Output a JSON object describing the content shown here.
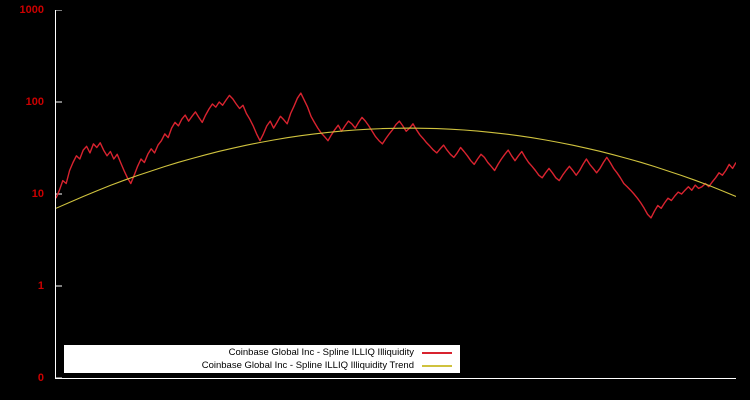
{
  "chart_data": {
    "type": "line",
    "title": "",
    "xlabel": "",
    "ylabel": "",
    "y_scale": "log",
    "log_top_decade": 3,
    "log_bottom_decade": -1,
    "ytick_labels": [
      "1000",
      "100",
      "10",
      "1",
      "0"
    ],
    "x_tick_labels": [],
    "grid": false,
    "background_color": "#000000",
    "axis_color": "#ffffff",
    "tick_label_color": "#cc0000",
    "legend_position": "bottom",
    "legend_background": "#ffffff",
    "series": [
      {
        "name": "Coinbase Global Inc - Spline ILLIQ Illiquidity",
        "color": "#d8232f",
        "stroke_width": 1.4,
        "values": [
          9,
          11,
          14,
          13,
          18,
          22,
          26,
          24,
          30,
          33,
          28,
          35,
          32,
          36,
          30,
          26,
          29,
          24,
          27,
          22,
          18,
          15,
          13,
          16,
          20,
          24,
          22,
          27,
          31,
          28,
          34,
          38,
          45,
          41,
          52,
          60,
          55,
          65,
          72,
          62,
          70,
          78,
          68,
          60,
          72,
          84,
          95,
          88,
          100,
          92,
          105,
          118,
          108,
          95,
          85,
          92,
          75,
          65,
          55,
          45,
          38,
          45,
          55,
          62,
          52,
          60,
          70,
          64,
          58,
          75,
          90,
          110,
          125,
          105,
          88,
          70,
          60,
          52,
          46,
          42,
          38,
          44,
          50,
          56,
          48,
          55,
          62,
          58,
          52,
          60,
          68,
          62,
          55,
          48,
          42,
          38,
          35,
          40,
          45,
          50,
          57,
          62,
          55,
          48,
          52,
          58,
          50,
          44,
          40,
          36,
          33,
          30,
          28,
          31,
          34,
          30,
          27,
          25,
          28,
          32,
          29,
          26,
          23,
          21,
          24,
          27,
          25,
          22,
          20,
          18,
          21,
          24,
          27,
          30,
          26,
          23,
          26,
          29,
          25,
          22,
          20,
          18,
          16,
          15,
          17,
          19,
          17,
          15,
          14,
          16,
          18,
          20,
          18,
          16,
          18,
          21,
          24,
          21,
          19,
          17,
          19,
          22,
          25,
          22,
          19,
          17,
          15,
          13,
          12,
          11,
          10,
          9,
          8,
          7,
          6,
          5.5,
          6.5,
          7.5,
          7,
          8,
          9,
          8.5,
          9.5,
          10.5,
          10,
          11,
          12,
          11,
          12.5,
          11.5,
          12,
          13,
          12,
          13.5,
          15,
          17,
          16,
          18,
          21,
          19,
          22
        ]
      },
      {
        "name": "Coinbase Global Inc - Spline ILLIQ Illiquidity Trend",
        "color": "#cfc23e",
        "stroke_width": 1.1,
        "values": [
          7.0,
          8.1,
          9.4,
          10.8,
          12.4,
          14.1,
          15.9,
          17.8,
          19.9,
          22.1,
          24.3,
          26.7,
          29.1,
          31.5,
          33.9,
          36.3,
          38.6,
          40.9,
          43.0,
          45.0,
          46.7,
          48.3,
          49.6,
          50.6,
          51.4,
          51.8,
          52.0,
          51.8,
          51.4,
          50.6,
          49.6,
          48.3,
          46.7,
          45.0,
          43.0,
          40.9,
          38.6,
          36.3,
          33.9,
          31.5,
          29.1,
          26.7,
          24.3,
          22.1,
          19.9,
          17.8,
          15.9,
          14.1,
          12.4,
          10.8,
          9.4
        ]
      }
    ]
  }
}
